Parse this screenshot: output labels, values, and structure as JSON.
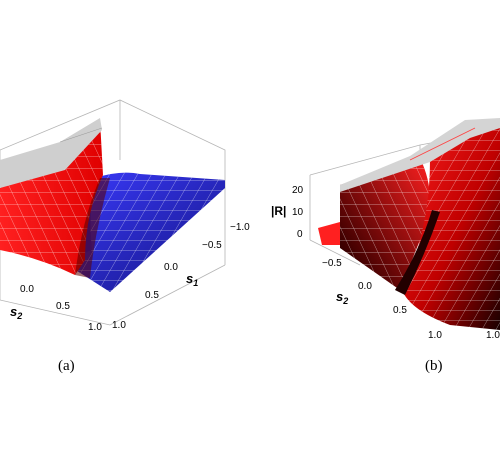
{
  "panel_a": {
    "caption": "(a)",
    "axes": {
      "s1_label": "s",
      "s1_sub": "1",
      "s2_label": "s",
      "s2_sub": "2",
      "s1_ticks": [
        "−1.0",
        "−0.5",
        "0.0",
        "0.5",
        "1.0"
      ],
      "s2_ticks": [
        "0.0",
        "0.5",
        "1.0"
      ]
    },
    "colors": {
      "surface_negative": "#2f2fe0",
      "surface_positive": "#ff1a1a",
      "ridge": "#c8c8c8"
    }
  },
  "panel_b": {
    "caption": "(b)",
    "axes": {
      "z_label": "|R|",
      "z_ticks": [
        "20",
        "10",
        "0"
      ],
      "s2_label": "s",
      "s2_sub": "2",
      "s2_ticks": [
        "−0.5",
        "0.0",
        "0.5",
        "1.0"
      ],
      "extra_tick": "1.0"
    },
    "colors": {
      "surface": "#ff1a1a",
      "dark": "#1a0000",
      "ridge": "#c8c8c8"
    }
  }
}
